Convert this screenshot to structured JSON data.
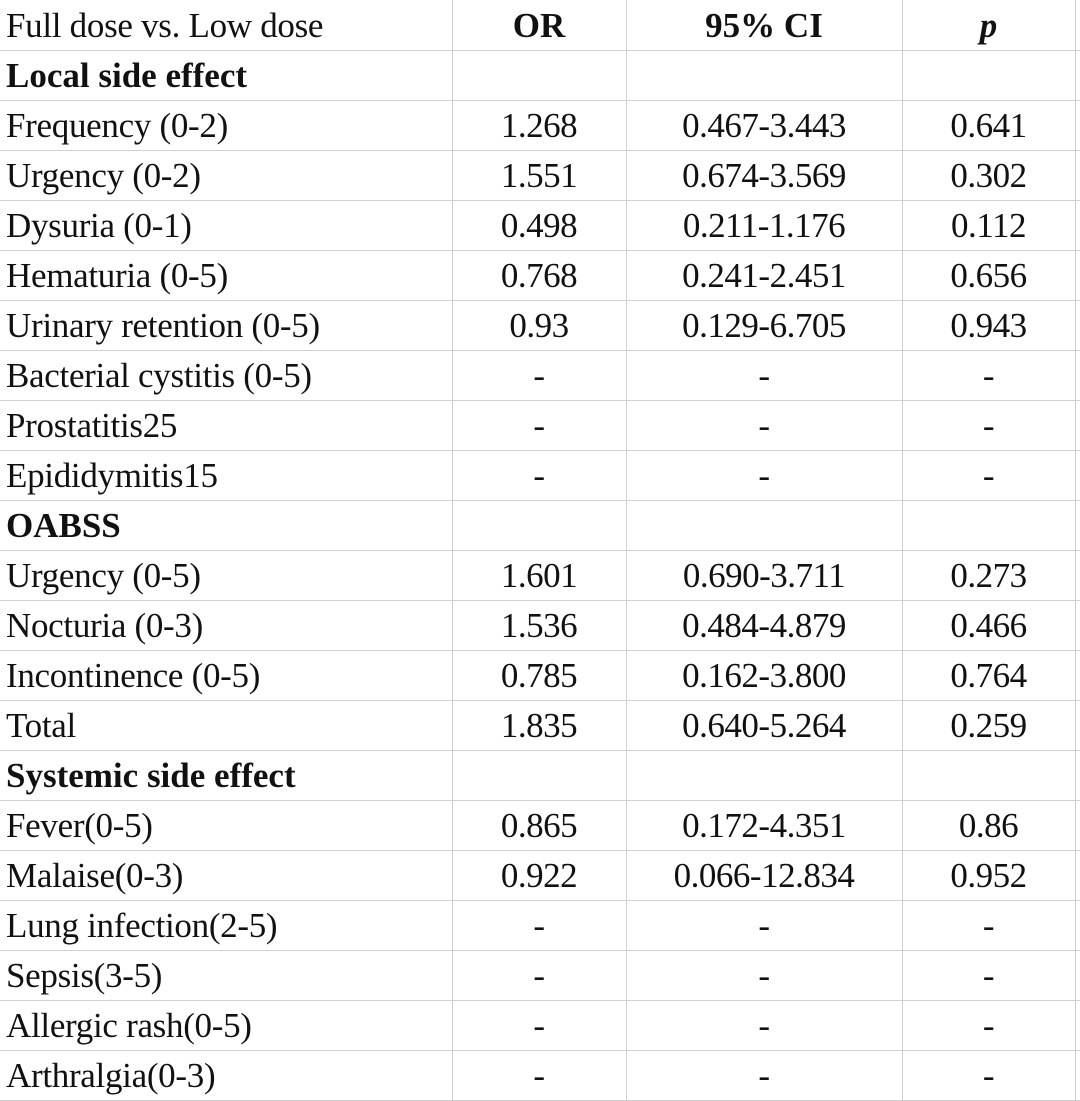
{
  "table": {
    "header": {
      "label": "Full dose vs. Low dose",
      "or": "OR",
      "ci": "95% CI",
      "p": "p"
    },
    "rows": [
      {
        "type": "section",
        "label": "Local side effect"
      },
      {
        "type": "data",
        "label": "Frequency (0-2)",
        "or": "1.268",
        "ci": "0.467-3.443",
        "p": "0.641"
      },
      {
        "type": "data",
        "label": "Urgency (0-2)",
        "or": "1.551",
        "ci": "0.674-3.569",
        "p": "0.302"
      },
      {
        "type": "data",
        "label": "Dysuria (0-1)",
        "or": "0.498",
        "ci": "0.211-1.176",
        "p": "0.112"
      },
      {
        "type": "data",
        "label": "Hematuria (0-5)",
        "or": "0.768",
        "ci": "0.241-2.451",
        "p": "0.656"
      },
      {
        "type": "data",
        "label": "Urinary retention (0-5)",
        "or": "0.93",
        "ci": "0.129-6.705",
        "p": "0.943"
      },
      {
        "type": "data",
        "label": "Bacterial cystitis  (0-5)",
        "or": "-",
        "ci": "-",
        "p": "-"
      },
      {
        "type": "data",
        "label": "Prostatitis25",
        "or": "-",
        "ci": "-",
        "p": "-"
      },
      {
        "type": "data",
        "label": "Epididymitis15",
        "or": "-",
        "ci": "-",
        "p": "-"
      },
      {
        "type": "section",
        "label": "OABSS"
      },
      {
        "type": "data",
        "label": "Urgency (0-5)",
        "or": "1.601",
        "ci": "0.690-3.711",
        "p": "0.273"
      },
      {
        "type": "data",
        "label": "Nocturia (0-3)",
        "or": "1.536",
        "ci": "0.484-4.879",
        "p": "0.466"
      },
      {
        "type": "data",
        "label": "Incontinence (0-5)",
        "or": "0.785",
        "ci": "0.162-3.800",
        "p": "0.764"
      },
      {
        "type": "data",
        "label": "Total",
        "or": "1.835",
        "ci": "0.640-5.264",
        "p": "0.259"
      },
      {
        "type": "section",
        "label": "Systemic side effect"
      },
      {
        "type": "data",
        "label": "Fever(0-5)",
        "or": "0.865",
        "ci": "0.172-4.351",
        "p": "0.86"
      },
      {
        "type": "data",
        "label": "Malaise(0-3)",
        "or": "0.922",
        "ci": "0.066-12.834",
        "p": "0.952"
      },
      {
        "type": "data",
        "label": "Lung infection(2-5)",
        "or": "-",
        "ci": "-",
        "p": "-"
      },
      {
        "type": "data",
        "label": "Sepsis(3-5)",
        "or": "-",
        "ci": "-",
        "p": "-"
      },
      {
        "type": "data",
        "label": "Allergic rash(0-5)",
        "or": "-",
        "ci": "-",
        "p": "-"
      },
      {
        "type": "data",
        "label": "Arthralgia(0-3)",
        "or": "-",
        "ci": "-",
        "p": "-"
      }
    ]
  }
}
